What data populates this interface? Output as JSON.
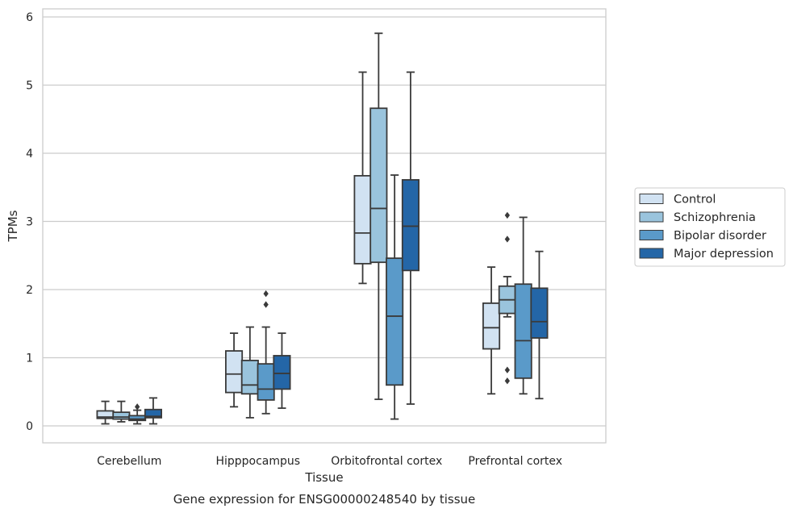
{
  "chart_data": {
    "type": "box",
    "title": "",
    "caption": "Gene expression for ENSG00000248540 by tissue",
    "xlabel": "Tissue",
    "ylabel": "TPMs",
    "ylim": [
      -0.25,
      6.05
    ],
    "yticks": [
      0,
      1,
      2,
      3,
      4,
      5,
      6
    ],
    "grid": true,
    "legend_position": "right",
    "categories": [
      "Cerebellum",
      "Hipppocampus",
      "Orbitofrontal cortex",
      "Prefrontal cortex"
    ],
    "series": [
      {
        "name": "Control",
        "color": "#d1e2f2",
        "boxes": [
          {
            "whislo": 0.03,
            "q1": 0.11,
            "med": 0.13,
            "q3": 0.22,
            "whishi": 0.36,
            "fliers": []
          },
          {
            "whislo": 0.28,
            "q1": 0.49,
            "med": 0.76,
            "q3": 1.1,
            "whishi": 1.36,
            "fliers": []
          },
          {
            "whislo": 2.09,
            "q1": 2.38,
            "med": 2.83,
            "q3": 3.67,
            "whishi": 5.19,
            "fliers": []
          },
          {
            "whislo": 0.47,
            "q1": 1.13,
            "med": 1.44,
            "q3": 1.8,
            "whishi": 2.33,
            "fliers": []
          }
        ]
      },
      {
        "name": "Schizophrenia",
        "color": "#9ac4dd",
        "boxes": [
          {
            "whislo": 0.06,
            "q1": 0.1,
            "med": 0.13,
            "q3": 0.2,
            "whishi": 0.36,
            "fliers": []
          },
          {
            "whislo": 0.12,
            "q1": 0.47,
            "med": 0.6,
            "q3": 0.96,
            "whishi": 1.45,
            "fliers": []
          },
          {
            "whislo": 0.39,
            "q1": 2.4,
            "med": 3.19,
            "q3": 4.66,
            "whishi": 5.76,
            "fliers": []
          },
          {
            "whislo": 1.6,
            "q1": 1.65,
            "med": 1.85,
            "q3": 2.05,
            "whishi": 2.19,
            "fliers": [
              0.66,
              0.82,
              2.74,
              3.09
            ]
          }
        ]
      },
      {
        "name": "Bipolar disorder",
        "color": "#5a9ac9",
        "boxes": [
          {
            "whislo": 0.03,
            "q1": 0.08,
            "med": 0.1,
            "q3": 0.15,
            "whishi": 0.23,
            "fliers": [
              0.28
            ]
          },
          {
            "whislo": 0.18,
            "q1": 0.38,
            "med": 0.54,
            "q3": 0.91,
            "whishi": 1.45,
            "fliers": [
              1.78,
              1.94
            ]
          },
          {
            "whislo": 0.1,
            "q1": 0.6,
            "med": 1.61,
            "q3": 2.46,
            "whishi": 3.68,
            "fliers": []
          },
          {
            "whislo": 0.47,
            "q1": 0.7,
            "med": 1.25,
            "q3": 2.08,
            "whishi": 3.06,
            "fliers": []
          }
        ]
      },
      {
        "name": "Major depression",
        "color": "#2466a7",
        "boxes": [
          {
            "whislo": 0.03,
            "q1": 0.12,
            "med": 0.14,
            "q3": 0.24,
            "whishi": 0.41,
            "fliers": []
          },
          {
            "whislo": 0.26,
            "q1": 0.54,
            "med": 0.77,
            "q3": 1.03,
            "whishi": 1.36,
            "fliers": []
          },
          {
            "whislo": 0.32,
            "q1": 2.28,
            "med": 2.93,
            "q3": 3.61,
            "whishi": 5.19,
            "fliers": []
          },
          {
            "whislo": 0.4,
            "q1": 1.29,
            "med": 1.53,
            "q3": 2.02,
            "whishi": 2.56,
            "fliers": []
          }
        ]
      }
    ]
  }
}
